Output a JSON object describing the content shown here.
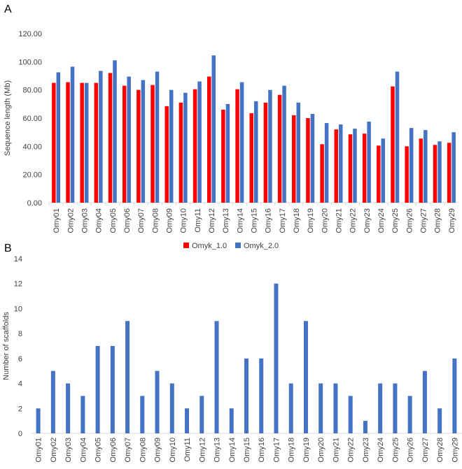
{
  "panels": {
    "a": "A",
    "b": "B"
  },
  "colors": {
    "omyk1": "#ff0000",
    "omyk2": "#4472c4",
    "axis": "#d9d9d9",
    "text": "#404040"
  },
  "chart_data": [
    {
      "type": "bar",
      "ylabel": "Sequence length (Mb)",
      "ylim": [
        0,
        120
      ],
      "yticks": [
        "0.00",
        "20.00",
        "40.00",
        "60.00",
        "80.00",
        "100.00",
        "120.00"
      ],
      "grid": false,
      "legend_position": "bottom",
      "categories": [
        "Omy01",
        "Omy02",
        "Omy03",
        "Omy04",
        "Omy05",
        "Omy06",
        "Omy07",
        "Omy08",
        "Omy09",
        "Omy10",
        "Omy11",
        "Omy12",
        "Omy13",
        "Omy14",
        "Omy15",
        "Omy16",
        "Omy17",
        "Omy18",
        "Omy19",
        "Omy20",
        "Omy21",
        "Omy22",
        "Omy23",
        "Omy24",
        "Omy25",
        "Omy26",
        "Omy27",
        "Omy28",
        "Omy29"
      ],
      "series": [
        {
          "name": "Omyk_1.0",
          "values": [
            85,
            85.5,
            85,
            85,
            92,
            83,
            80,
            83.5,
            68.5,
            71,
            80.5,
            89.5,
            66,
            80.5,
            63.5,
            71,
            76.5,
            62,
            60,
            41.5,
            52,
            48.5,
            49,
            40.5,
            82.5,
            40,
            45.5,
            41,
            42.5
          ]
        },
        {
          "name": "Omyk_2.0",
          "values": [
            92.5,
            96.5,
            85,
            93.5,
            101,
            89.5,
            87,
            93,
            80,
            78,
            86,
            104.5,
            70,
            85.5,
            72,
            80,
            83,
            71,
            63,
            56.5,
            55.5,
            52.5,
            57.5,
            45.5,
            93,
            53,
            51.5,
            43.5,
            50
          ]
        }
      ]
    },
    {
      "type": "bar",
      "ylabel": "Number of scaffolds",
      "ylim": [
        0,
        14
      ],
      "yticks": [
        "0",
        "2",
        "4",
        "6",
        "8",
        "10",
        "12",
        "14"
      ],
      "grid": false,
      "categories": [
        "Omy01",
        "Omy02",
        "Omy03",
        "Omy04",
        "Omy05",
        "Omy06",
        "Omy07",
        "Omy08",
        "Omy09",
        "Omy10",
        "Omy11",
        "Omy12",
        "Omy13",
        "Omy14",
        "Omy15",
        "Omy16",
        "Omy17",
        "Omy18",
        "Omy19",
        "Omy20",
        "Omy21",
        "Omy22",
        "Omy23",
        "Omy24",
        "Omy25",
        "Omy26",
        "Omy27",
        "Omy28",
        "Omy29"
      ],
      "series": [
        {
          "values": [
            2,
            5,
            4,
            3,
            7,
            7,
            9,
            3,
            5,
            4,
            2,
            3,
            9,
            2,
            6,
            6,
            12,
            4,
            9,
            4,
            4,
            3,
            1,
            4,
            4,
            3,
            5,
            2,
            6
          ]
        }
      ]
    }
  ]
}
